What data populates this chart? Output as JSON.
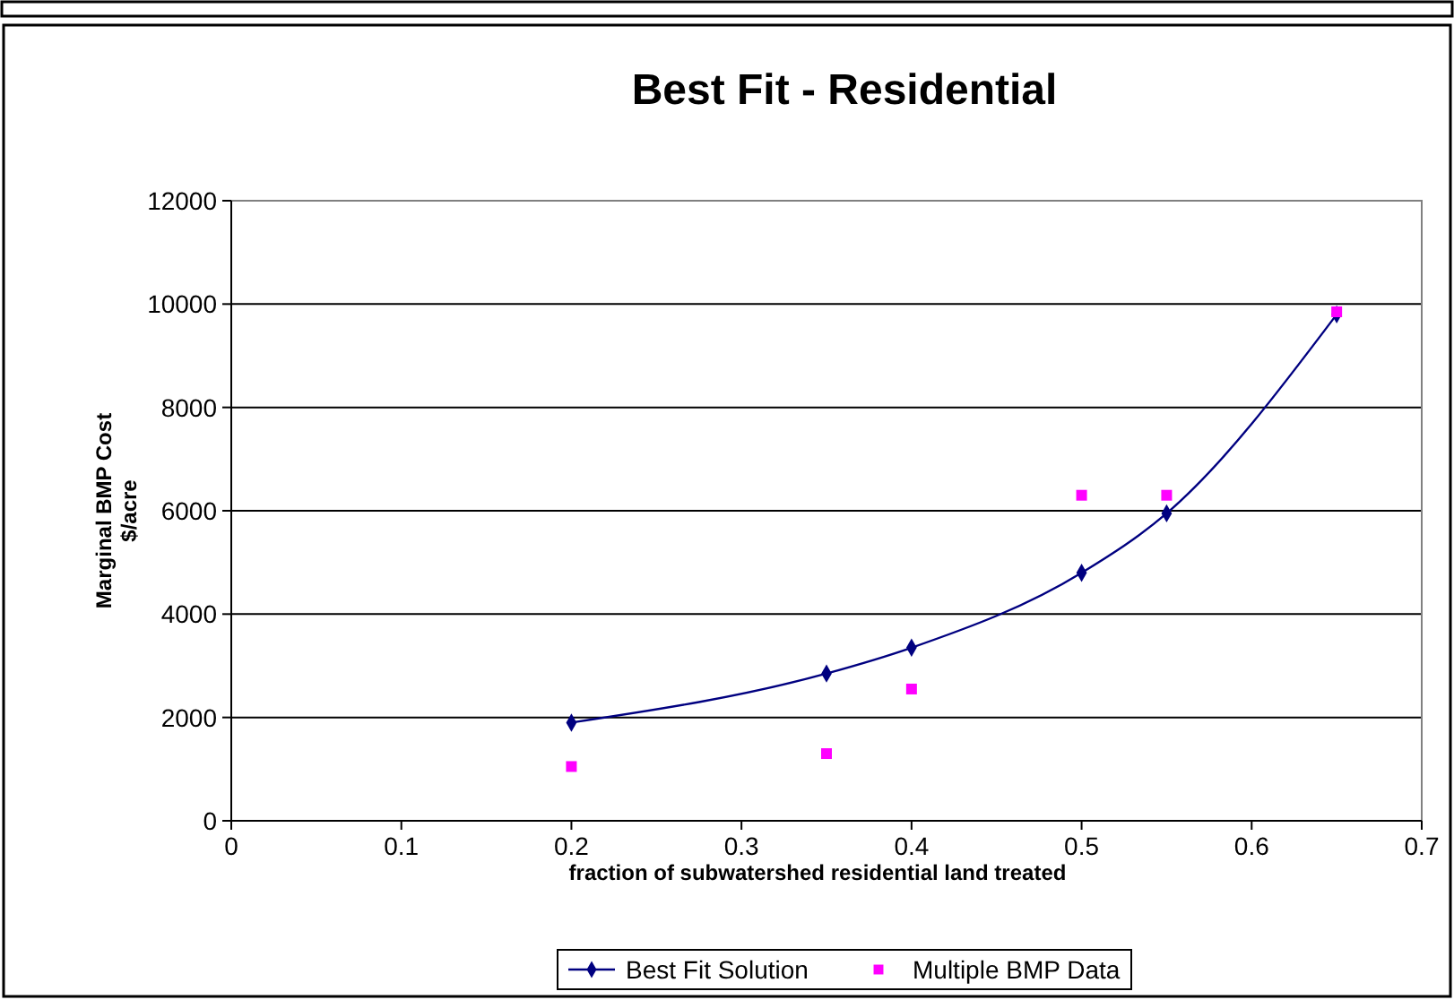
{
  "chart_data": {
    "type": "line",
    "title": "Best Fit - Residential",
    "xlabel": "fraction of subwatershed residential land treated",
    "ylabel": "Marginal BMP Cost\n$/acre",
    "xlim": [
      0,
      0.7
    ],
    "xticks": [
      0,
      0.1,
      0.2,
      0.3,
      0.4,
      0.5,
      0.6,
      0.7
    ],
    "ylim": [
      0,
      12000
    ],
    "yticks": [
      0,
      2000,
      4000,
      6000,
      8000,
      10000,
      12000
    ],
    "grid": "y",
    "legend": "bottom",
    "series": [
      {
        "name": "Best Fit Solution",
        "color": "#000080",
        "marker": "diamond",
        "x": [
          0.2,
          0.35,
          0.4,
          0.5,
          0.55,
          0.65
        ],
        "values": [
          1900,
          2850,
          3350,
          4800,
          5950,
          9800
        ]
      },
      {
        "name": "Multiple BMP Data",
        "type": "scatter",
        "color": "#ff00ff",
        "marker": "square",
        "x": [
          0.2,
          0.35,
          0.4,
          0.5,
          0.55,
          0.65
        ],
        "values": [
          1050,
          1300,
          2550,
          6300,
          6300,
          9850
        ]
      }
    ]
  }
}
